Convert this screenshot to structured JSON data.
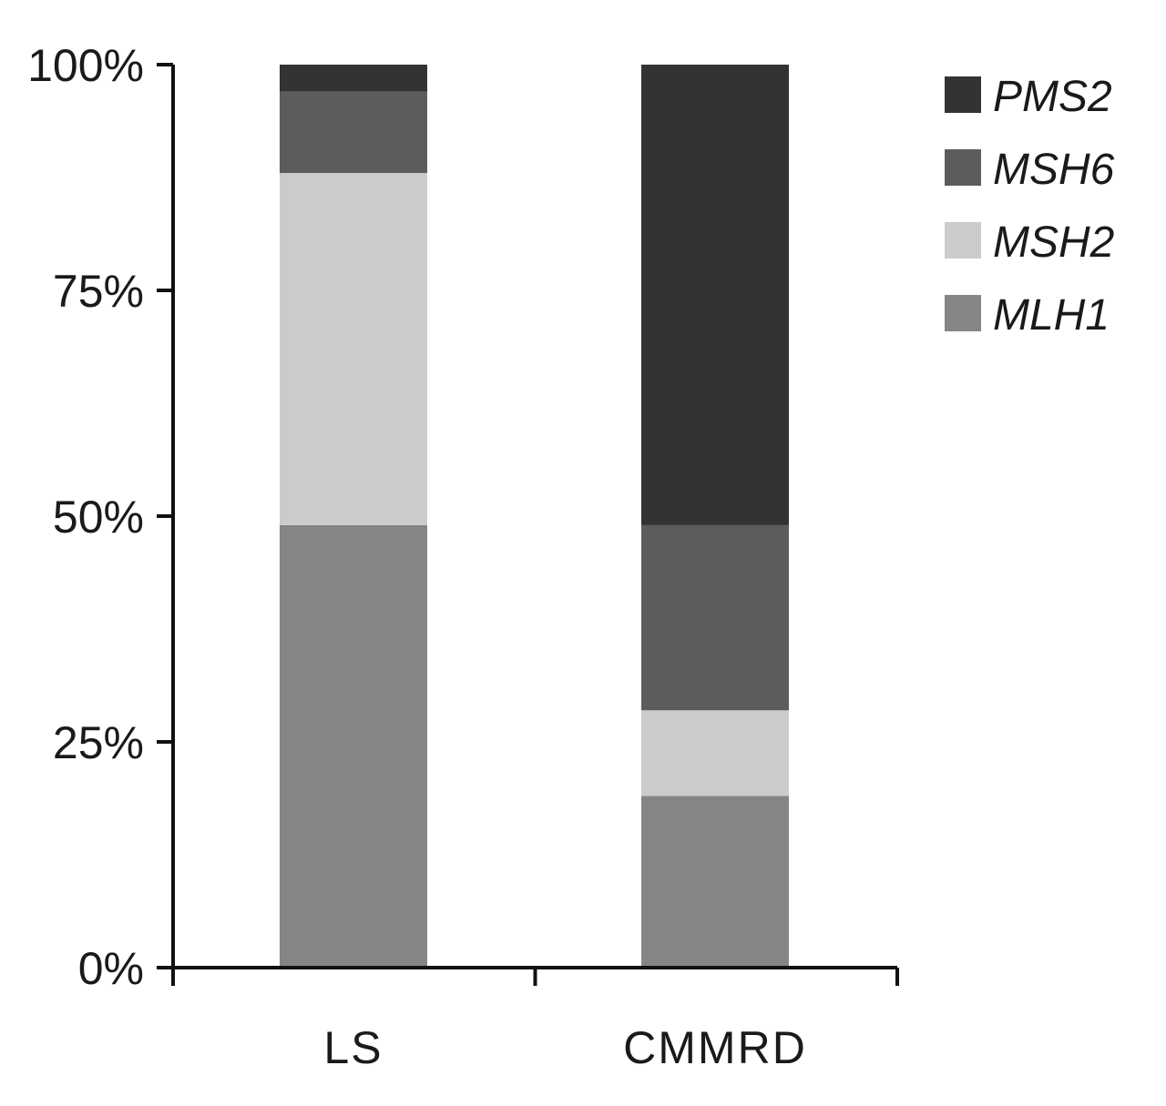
{
  "chart_data": {
    "type": "bar",
    "stacked": true,
    "categories": [
      "LS",
      "CMMRD"
    ],
    "series": [
      {
        "name": "MLH1",
        "values": [
          49,
          19
        ],
        "color": "#858585"
      },
      {
        "name": "MSH2",
        "values": [
          39,
          9.5
        ],
        "color": "#cbcbcb"
      },
      {
        "name": "MSH6",
        "values": [
          9,
          20.5
        ],
        "color": "#5c5c5c"
      },
      {
        "name": "PMS2",
        "values": [
          3,
          51
        ],
        "color": "#333333"
      }
    ],
    "yticks": [
      "0%",
      "25%",
      "50%",
      "75%",
      "100%"
    ],
    "ylim": [
      0,
      100
    ],
    "title": "",
    "xlabel": "",
    "ylabel": "",
    "grid": false,
    "legend_position": "top-right",
    "legend_order": [
      "PMS2",
      "MSH6",
      "MSH2",
      "MLH1"
    ]
  }
}
